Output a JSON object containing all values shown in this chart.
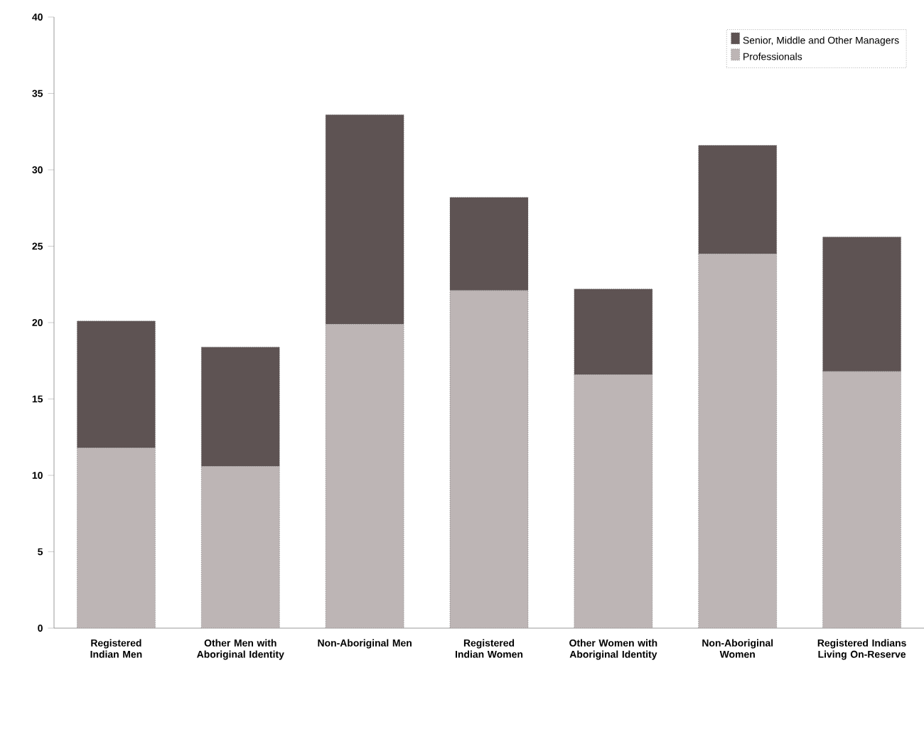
{
  "chart_data": {
    "type": "bar",
    "stacked": true,
    "categories": [
      "Registered Indian Men",
      "Other Men with Aboriginal Identity",
      "Non-Aboriginal Men",
      "Registered Indian Women",
      "Other Women with Aboriginal Identity",
      "Non-Aboriginal Women",
      "Registered Indians Living On-Reserve"
    ],
    "series": [
      {
        "name": "Professionals",
        "color": "#bdb5b5",
        "values": [
          11.8,
          10.6,
          19.9,
          22.1,
          16.6,
          24.5,
          16.8
        ]
      },
      {
        "name": "Senior, Middle and Other Managers",
        "color": "#5e5353",
        "values": [
          8.3,
          7.8,
          13.7,
          6.1,
          5.6,
          7.1,
          8.8
        ]
      }
    ],
    "ylim": [
      0,
      40
    ],
    "yticks": [
      0,
      5,
      10,
      15,
      20,
      25,
      30,
      35,
      40
    ],
    "grid": false,
    "legend": "top right"
  }
}
